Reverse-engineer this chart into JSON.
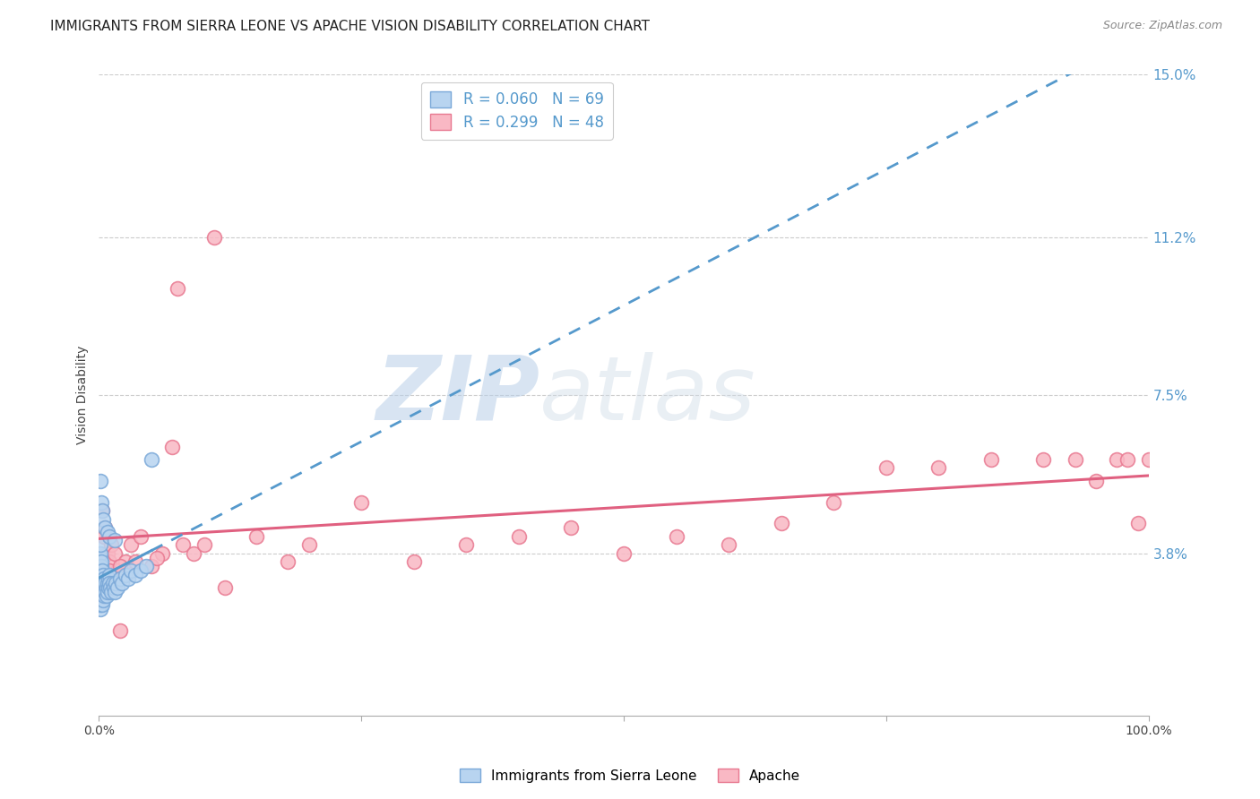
{
  "title": "IMMIGRANTS FROM SIERRA LEONE VS APACHE VISION DISABILITY CORRELATION CHART",
  "source": "Source: ZipAtlas.com",
  "ylabel": "Vision Disability",
  "xlim": [
    0,
    1.0
  ],
  "ylim": [
    0,
    0.15
  ],
  "x_tick_labels": [
    "0.0%",
    "",
    "",
    "",
    "100.0%"
  ],
  "x_tick_values": [
    0.0,
    0.25,
    0.5,
    0.75,
    1.0
  ],
  "y_tick_labels_right": [
    "15.0%",
    "11.2%",
    "7.5%",
    "3.8%"
  ],
  "y_tick_values_right": [
    0.15,
    0.112,
    0.075,
    0.038
  ],
  "legend_items": [
    {
      "label": "Immigrants from Sierra Leone",
      "R": "0.060",
      "N": "69",
      "color_face": "#b8d4f0",
      "color_edge": "#7aa8d8"
    },
    {
      "label": "Apache",
      "R": "0.299",
      "N": "48",
      "color_face": "#f9b8c4",
      "color_edge": "#e87890"
    }
  ],
  "blue_x": [
    0.001,
    0.001,
    0.001,
    0.001,
    0.001,
    0.001,
    0.001,
    0.001,
    0.001,
    0.001,
    0.001,
    0.001,
    0.001,
    0.001,
    0.001,
    0.002,
    0.002,
    0.002,
    0.002,
    0.002,
    0.002,
    0.002,
    0.002,
    0.003,
    0.003,
    0.003,
    0.003,
    0.003,
    0.004,
    0.004,
    0.004,
    0.004,
    0.005,
    0.005,
    0.005,
    0.006,
    0.006,
    0.007,
    0.007,
    0.008,
    0.008,
    0.009,
    0.009,
    0.01,
    0.01,
    0.011,
    0.012,
    0.013,
    0.014,
    0.015,
    0.016,
    0.018,
    0.02,
    0.022,
    0.025,
    0.028,
    0.03,
    0.035,
    0.04,
    0.045,
    0.001,
    0.002,
    0.003,
    0.004,
    0.006,
    0.008,
    0.01,
    0.015,
    0.05
  ],
  "blue_y": [
    0.025,
    0.03,
    0.032,
    0.033,
    0.034,
    0.035,
    0.036,
    0.037,
    0.038,
    0.04,
    0.028,
    0.029,
    0.031,
    0.027,
    0.026,
    0.033,
    0.034,
    0.035,
    0.036,
    0.03,
    0.028,
    0.031,
    0.029,
    0.034,
    0.032,
    0.03,
    0.028,
    0.026,
    0.033,
    0.031,
    0.029,
    0.027,
    0.032,
    0.03,
    0.028,
    0.031,
    0.029,
    0.03,
    0.028,
    0.031,
    0.029,
    0.032,
    0.03,
    0.033,
    0.031,
    0.03,
    0.029,
    0.031,
    0.03,
    0.029,
    0.031,
    0.03,
    0.032,
    0.031,
    0.033,
    0.032,
    0.034,
    0.033,
    0.034,
    0.035,
    0.055,
    0.05,
    0.048,
    0.046,
    0.044,
    0.043,
    0.042,
    0.041,
    0.06
  ],
  "pink_x": [
    0.005,
    0.008,
    0.01,
    0.012,
    0.015,
    0.018,
    0.02,
    0.025,
    0.03,
    0.04,
    0.05,
    0.06,
    0.07,
    0.08,
    0.09,
    0.1,
    0.12,
    0.15,
    0.18,
    0.2,
    0.25,
    0.3,
    0.35,
    0.4,
    0.45,
    0.5,
    0.55,
    0.6,
    0.65,
    0.7,
    0.75,
    0.8,
    0.85,
    0.9,
    0.93,
    0.95,
    0.97,
    0.98,
    0.99,
    1.0,
    0.003,
    0.006,
    0.01,
    0.02,
    0.035,
    0.055,
    0.075,
    0.11
  ],
  "pink_y": [
    0.042,
    0.038,
    0.036,
    0.04,
    0.038,
    0.034,
    0.02,
    0.036,
    0.04,
    0.042,
    0.035,
    0.038,
    0.063,
    0.04,
    0.038,
    0.04,
    0.03,
    0.042,
    0.036,
    0.04,
    0.05,
    0.036,
    0.04,
    0.042,
    0.044,
    0.038,
    0.042,
    0.04,
    0.045,
    0.05,
    0.058,
    0.058,
    0.06,
    0.06,
    0.06,
    0.055,
    0.06,
    0.06,
    0.045,
    0.06,
    0.048,
    0.044,
    0.034,
    0.035,
    0.036,
    0.037,
    0.1,
    0.112
  ],
  "watermark_zip": "ZIP",
  "watermark_atlas": "atlas",
  "background_color": "#ffffff",
  "grid_color": "#cccccc",
  "blue_line_color": "#5599cc",
  "pink_line_color": "#e06080",
  "title_fontsize": 11,
  "axis_label_fontsize": 10,
  "tick_fontsize": 10,
  "right_tick_color": "#5599cc"
}
